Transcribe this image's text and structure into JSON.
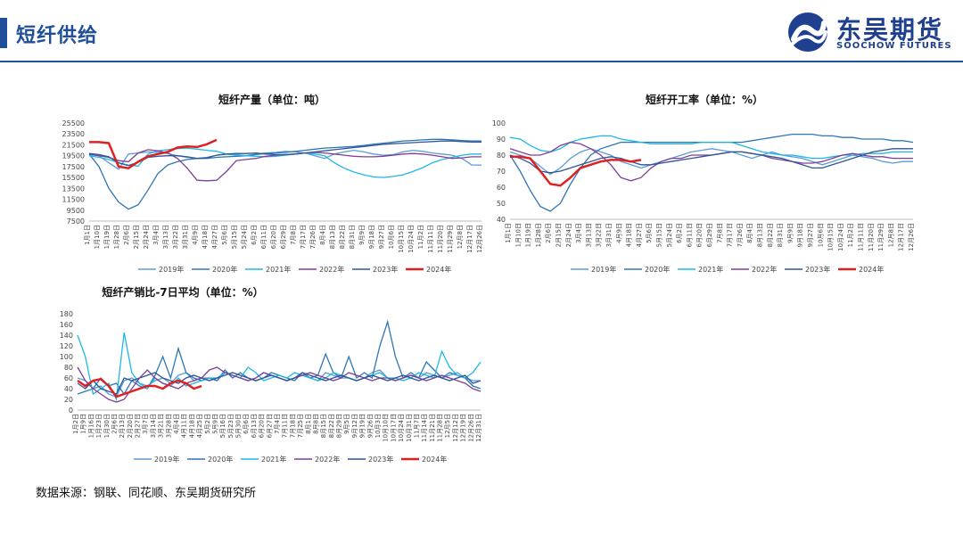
{
  "header": {
    "title": "短纤供给",
    "logo_cn": "东吴期货",
    "logo_en": "SOOCHOW FUTURES"
  },
  "source_note": "数据来源：钢联、同花顺、东吴期货研究所",
  "colors": {
    "2019": "#5b9bd5",
    "2020": "#2e75b6",
    "2021": "#1eb8e6",
    "2022": "#7f3f98",
    "2023": "#2f5597",
    "2024": "#e02020",
    "accent": "#1f4e9a"
  },
  "chart_data": [
    {
      "type": "line",
      "title": "短纤产量（单位：吨）",
      "ylim": [
        7500,
        25500
      ],
      "yticks": [
        "25500",
        "23500",
        "21500",
        "19500",
        "17500",
        "15500",
        "13500",
        "11500",
        "9500",
        "7500"
      ],
      "xticks": [
        "1月1日",
        "1月10日",
        "1月19日",
        "1月28日",
        "2月6日",
        "2月15日",
        "2月24日",
        "3月4日",
        "3月13日",
        "3月22日",
        "3月31日",
        "4月9日",
        "4月18日",
        "4月27日",
        "5月6日",
        "5月15日",
        "5月24日",
        "6月2日",
        "6月11日",
        "6月20日",
        "6月29日",
        "7月8日",
        "7月17日",
        "7月26日",
        "8月4日",
        "8月13日",
        "8月22日",
        "8月31日",
        "9月9日",
        "9月18日",
        "9月27日",
        "10月6日",
        "10月15日",
        "10月24日",
        "11月2日",
        "11月11日",
        "11月20日",
        "11月29日",
        "12月8日",
        "12月17日",
        "12月26日"
      ],
      "legend": [
        "2019年",
        "2020年",
        "2021年",
        "2022年",
        "2023年",
        "2024年"
      ],
      "series": [
        {
          "name": "2019年",
          "values": [
            19700,
            19500,
            18200,
            17000,
            19800,
            20000,
            20200,
            20100,
            19900,
            19500,
            19200,
            19000,
            19200,
            19600,
            19800,
            19700,
            19500,
            19800,
            20000,
            20100,
            20300,
            20200,
            20000,
            19500,
            19000,
            19800,
            20200,
            20500,
            20200,
            19800,
            19600,
            19700,
            20200,
            20500,
            20300,
            20000,
            19800,
            19600,
            19000,
            17800,
            17800
          ]
        },
        {
          "name": "2020年",
          "values": [
            19800,
            17500,
            13500,
            11000,
            9700,
            10500,
            13200,
            16200,
            17800,
            18400,
            18800,
            19000,
            19000,
            19200,
            19300,
            19400,
            19500,
            19700,
            19900,
            20000,
            20100,
            20300,
            20500,
            20700,
            20900,
            21000,
            21100,
            21200,
            21400,
            21600,
            21800,
            22000,
            22200,
            22300,
            22400,
            22500,
            22500,
            22400,
            22300,
            22200,
            22200
          ]
        },
        {
          "name": "2021年",
          "values": [
            19500,
            19200,
            18800,
            18200,
            17800,
            17600,
            19800,
            20400,
            20600,
            20800,
            20900,
            20700,
            20500,
            20300,
            19800,
            19600,
            19500,
            19400,
            19300,
            19400,
            19600,
            19800,
            20000,
            19800,
            19500,
            18200,
            17200,
            16500,
            16000,
            15600,
            15500,
            15700,
            16000,
            16600,
            17300,
            18200,
            18800,
            19200,
            19600,
            19800,
            19800
          ]
        },
        {
          "name": "2022年",
          "values": [
            19800,
            19500,
            19200,
            18600,
            18400,
            20000,
            20600,
            20400,
            20000,
            19000,
            17200,
            15000,
            14900,
            15000,
            16600,
            18600,
            18800,
            19000,
            19400,
            19600,
            19700,
            19800,
            20000,
            20100,
            20000,
            19800,
            19600,
            19400,
            19300,
            19300,
            19400,
            19600,
            19800,
            19900,
            19800,
            19600,
            19300,
            19000,
            19100,
            19300,
            19300
          ]
        },
        {
          "name": "2023年",
          "values": [
            19900,
            19700,
            19300,
            18200,
            17700,
            18300,
            19200,
            19400,
            19500,
            19500,
            19300,
            19000,
            19100,
            19600,
            19800,
            19900,
            19900,
            20000,
            19800,
            19700,
            19700,
            19800,
            20000,
            20200,
            20400,
            20600,
            20800,
            21000,
            21200,
            21400,
            21600,
            21700,
            21800,
            21900,
            22000,
            22100,
            22200,
            22200,
            22100,
            22000,
            22000
          ]
        },
        {
          "name": "2024年",
          "values": [
            22000,
            22000,
            21800,
            17500,
            17200,
            18400,
            19400,
            19800,
            20200,
            21000,
            21200,
            21100,
            21600,
            22400
          ]
        }
      ]
    },
    {
      "type": "line",
      "title": "短纤开工率（单位：%）",
      "ylim": [
        40,
        100
      ],
      "yticks": [
        "100",
        "90",
        "80",
        "70",
        "60",
        "50",
        "40"
      ],
      "xticks": [
        "1月1日",
        "1月10日",
        "1月19日",
        "1月28日",
        "2月6日",
        "2月15日",
        "2月24日",
        "3月4日",
        "3月13日",
        "3月22日",
        "3月31日",
        "4月9日",
        "4月18日",
        "4月27日",
        "5月6日",
        "5月15日",
        "5月24日",
        "6月2日",
        "6月11日",
        "6月20日",
        "6月29日",
        "7月8日",
        "7月17日",
        "7月26日",
        "8月4日",
        "8月13日",
        "8月22日",
        "8月31日",
        "9月9日",
        "9月18日",
        "9月27日",
        "10月6日",
        "10月15日",
        "10月24日",
        "11月2日",
        "11月11日",
        "11月20日",
        "11月29日",
        "12月8日",
        "12月17日",
        "12月26日"
      ],
      "legend": [
        "2019年",
        "2020年",
        "2021年",
        "2022年",
        "2023年",
        "2024年"
      ],
      "series": [
        {
          "name": "2019年",
          "values": [
            82,
            80,
            78,
            73,
            68,
            72,
            78,
            82,
            84,
            82,
            80,
            76,
            74,
            72,
            74,
            76,
            78,
            80,
            82,
            83,
            84,
            83,
            82,
            80,
            78,
            80,
            82,
            80,
            79,
            78,
            76,
            74,
            76,
            78,
            80,
            79,
            78,
            76,
            75,
            76,
            76
          ]
        },
        {
          "name": "2020年",
          "values": [
            80,
            70,
            58,
            48,
            45,
            50,
            62,
            72,
            80,
            84,
            86,
            88,
            88,
            88,
            88,
            88,
            88,
            88,
            88,
            88,
            88,
            88,
            88,
            88,
            89,
            90,
            91,
            92,
            93,
            93,
            93,
            92,
            92,
            91,
            91,
            90,
            90,
            90,
            89,
            89,
            88
          ]
        },
        {
          "name": "2021年",
          "values": [
            91,
            90,
            86,
            83,
            82,
            84,
            88,
            90,
            91,
            92,
            92,
            90,
            89,
            88,
            87,
            87,
            87,
            87,
            87,
            88,
            88,
            88,
            88,
            86,
            84,
            82,
            81,
            80,
            80,
            79,
            78,
            78,
            79,
            80,
            80,
            81,
            81,
            81,
            82,
            82,
            82
          ]
        },
        {
          "name": "2022年",
          "values": [
            84,
            82,
            80,
            80,
            82,
            86,
            88,
            87,
            84,
            80,
            74,
            66,
            64,
            66,
            72,
            76,
            78,
            78,
            80,
            80,
            80,
            81,
            82,
            82,
            81,
            80,
            78,
            77,
            76,
            75,
            75,
            76,
            78,
            80,
            81,
            80,
            79,
            79,
            78,
            78,
            78
          ]
        },
        {
          "name": "2023年",
          "values": [
            80,
            78,
            75,
            70,
            69,
            70,
            72,
            74,
            76,
            78,
            79,
            78,
            76,
            74,
            74,
            75,
            76,
            77,
            78,
            79,
            80,
            81,
            82,
            82,
            81,
            80,
            79,
            78,
            76,
            74,
            72,
            72,
            74,
            76,
            78,
            80,
            82,
            83,
            84,
            84,
            84
          ]
        },
        {
          "name": "2024年",
          "values": [
            79,
            79,
            78,
            70,
            62,
            61,
            66,
            72,
            74,
            76,
            77,
            77,
            76,
            77
          ]
        }
      ]
    },
    {
      "type": "line",
      "title": "短纤产销比-7日平均（单位：%）",
      "ylim": [
        0,
        180
      ],
      "yticks": [
        "180",
        "160",
        "140",
        "120",
        "100",
        "80",
        "60",
        "40",
        "20",
        "0"
      ],
      "xticks": [
        "1月2日",
        "1月9日",
        "1月16日",
        "1月23日",
        "1月30日",
        "2月6日",
        "2月13日",
        "2月20日",
        "2月27日",
        "3月7日",
        "3月14日",
        "3月21日",
        "3月28日",
        "4月4日",
        "4月11日",
        "4月18日",
        "4月25日",
        "5月2日",
        "5月9日",
        "5月16日",
        "5月23日",
        "5月30日",
        "6月6日",
        "6月13日",
        "6月20日",
        "6月27日",
        "7月4日",
        "7月11日",
        "7月18日",
        "7月25日",
        "8月1日",
        "8月8日",
        "8月15日",
        "8月22日",
        "8月29日",
        "9月5日",
        "9月12日",
        "9月19日",
        "9月26日",
        "10月3日",
        "10月10日",
        "10月17日",
        "10月24日",
        "10月31日",
        "11月7日",
        "11月14日",
        "11月21日",
        "11月28日",
        "12月5日",
        "12月12日",
        "12月19日",
        "12月26日",
        "12月31日"
      ],
      "legend": [
        "2019年",
        "2020年",
        "2021年",
        "2022年",
        "2023年",
        "2024年"
      ],
      "series": [
        {
          "name": "2019年",
          "values": [
            60,
            55,
            40,
            45,
            30,
            25,
            55,
            60,
            50,
            45,
            55,
            60,
            50,
            65,
            70,
            55,
            60,
            60,
            55,
            70,
            65,
            60,
            55,
            60,
            70,
            65,
            60,
            55,
            60,
            65,
            60,
            55,
            70,
            65,
            60,
            60,
            55,
            60,
            70,
            75,
            60,
            55,
            60,
            65,
            60,
            70,
            65,
            60,
            65,
            70,
            60,
            55,
            55
          ]
        },
        {
          "name": "2020年",
          "values": [
            30,
            35,
            40,
            60,
            45,
            50,
            30,
            55,
            45,
            40,
            65,
            100,
            60,
            115,
            70,
            60,
            55,
            60,
            55,
            75,
            60,
            70,
            60,
            55,
            60,
            70,
            65,
            60,
            55,
            70,
            60,
            65,
            105,
            70,
            60,
            100,
            60,
            70,
            60,
            120,
            165,
            100,
            60,
            70,
            60,
            90,
            75,
            60,
            70,
            65,
            60,
            45,
            40
          ]
        },
        {
          "name": "2021年",
          "values": [
            140,
            100,
            30,
            40,
            50,
            20,
            145,
            70,
            50,
            40,
            60,
            50,
            45,
            60,
            45,
            50,
            55,
            60,
            60,
            70,
            65,
            60,
            80,
            70,
            55,
            60,
            65,
            60,
            70,
            65,
            60,
            55,
            60,
            70,
            65,
            60,
            55,
            60,
            65,
            70,
            60,
            60,
            55,
            60,
            70,
            65,
            60,
            110,
            80,
            65,
            60,
            70,
            90
          ]
        },
        {
          "name": "2022年",
          "values": [
            80,
            55,
            40,
            30,
            20,
            15,
            20,
            40,
            60,
            75,
            60,
            50,
            45,
            40,
            50,
            55,
            60,
            75,
            80,
            70,
            65,
            60,
            55,
            60,
            70,
            65,
            60,
            55,
            60,
            65,
            70,
            65,
            60,
            55,
            60,
            70,
            65,
            60,
            55,
            60,
            60,
            55,
            60,
            65,
            60,
            55,
            60,
            65,
            60,
            55,
            50,
            40,
            35
          ]
        },
        {
          "name": "2023年",
          "values": [
            50,
            40,
            55,
            40,
            35,
            30,
            60,
            55,
            60,
            65,
            70,
            60,
            55,
            50,
            60,
            65,
            60,
            55,
            60,
            65,
            70,
            65,
            60,
            55,
            60,
            65,
            60,
            55,
            60,
            70,
            65,
            60,
            55,
            60,
            65,
            60,
            55,
            60,
            65,
            60,
            55,
            60,
            65,
            60,
            55,
            60,
            65,
            60,
            55,
            60,
            65,
            50,
            55
          ]
        },
        {
          "name": "2024年",
          "values": [
            55,
            45,
            55,
            58,
            45,
            25,
            30,
            35,
            40,
            45,
            45,
            40,
            50,
            55,
            50,
            40,
            45
          ]
        }
      ]
    }
  ]
}
